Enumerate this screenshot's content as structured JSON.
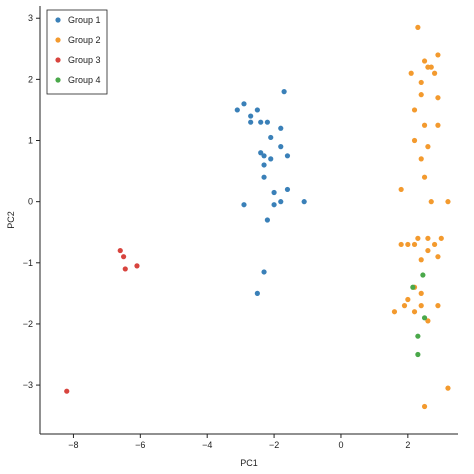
{
  "chart_data": {
    "type": "scatter",
    "title": "",
    "xlabel": "PC1",
    "ylabel": "PC2",
    "xlim": [
      -9.0,
      3.5
    ],
    "ylim": [
      -3.8,
      3.2
    ],
    "x_ticks": [
      -8,
      -6,
      -4,
      -2,
      0,
      2
    ],
    "x_tick_labels": [
      "−8",
      "−6",
      "−4",
      "−2",
      "0",
      "2"
    ],
    "y_ticks": [
      -3,
      -2,
      -1,
      0,
      1,
      2,
      3
    ],
    "y_tick_labels": [
      "−3",
      "−2",
      "−1",
      "0",
      "1",
      "2",
      "3"
    ],
    "grid": false,
    "legend_position": "top-left",
    "series": [
      {
        "name": "Group 1",
        "color": "#3a80b8",
        "points": [
          [
            -2.9,
            1.6
          ],
          [
            -3.1,
            1.5
          ],
          [
            -2.7,
            1.4
          ],
          [
            -2.5,
            1.5
          ],
          [
            -2.7,
            1.3
          ],
          [
            -2.4,
            1.3
          ],
          [
            -2.2,
            1.3
          ],
          [
            -1.7,
            1.8
          ],
          [
            -1.8,
            1.2
          ],
          [
            -2.1,
            1.05
          ],
          [
            -1.8,
            0.9
          ],
          [
            -2.4,
            0.8
          ],
          [
            -2.3,
            0.75
          ],
          [
            -2.1,
            0.7
          ],
          [
            -1.6,
            0.75
          ],
          [
            -2.3,
            0.6
          ],
          [
            -2.3,
            0.4
          ],
          [
            -1.6,
            0.2
          ],
          [
            -2.0,
            0.15
          ],
          [
            -1.8,
            0.0
          ],
          [
            -2.0,
            -0.05
          ],
          [
            -2.9,
            -0.05
          ],
          [
            -1.1,
            0.0
          ],
          [
            -2.2,
            -0.3
          ],
          [
            -2.3,
            -1.15
          ],
          [
            -2.5,
            -1.5
          ]
        ]
      },
      {
        "name": "Group 2",
        "color": "#f39a2e",
        "points": [
          [
            2.3,
            2.85
          ],
          [
            2.5,
            2.3
          ],
          [
            2.9,
            2.4
          ],
          [
            2.6,
            2.2
          ],
          [
            2.7,
            2.2
          ],
          [
            2.1,
            2.1
          ],
          [
            2.8,
            2.1
          ],
          [
            2.4,
            1.95
          ],
          [
            2.4,
            1.75
          ],
          [
            2.9,
            1.7
          ],
          [
            2.2,
            1.5
          ],
          [
            2.5,
            1.25
          ],
          [
            2.9,
            1.25
          ],
          [
            2.2,
            1.0
          ],
          [
            2.6,
            0.9
          ],
          [
            2.4,
            0.7
          ],
          [
            2.5,
            0.4
          ],
          [
            1.8,
            0.2
          ],
          [
            2.7,
            0.0
          ],
          [
            3.2,
            0.0
          ],
          [
            2.3,
            -0.6
          ],
          [
            2.6,
            -0.6
          ],
          [
            3.0,
            -0.6
          ],
          [
            1.8,
            -0.7
          ],
          [
            2.0,
            -0.7
          ],
          [
            2.2,
            -0.7
          ],
          [
            2.8,
            -0.7
          ],
          [
            2.6,
            -0.8
          ],
          [
            2.9,
            -0.9
          ],
          [
            2.4,
            -0.95
          ],
          [
            2.2,
            -1.4
          ],
          [
            2.4,
            -1.5
          ],
          [
            2.0,
            -1.6
          ],
          [
            1.9,
            -1.7
          ],
          [
            2.4,
            -1.7
          ],
          [
            2.9,
            -1.7
          ],
          [
            1.6,
            -1.8
          ],
          [
            2.2,
            -1.8
          ],
          [
            2.6,
            -1.95
          ],
          [
            3.2,
            -3.05
          ],
          [
            2.5,
            -3.35
          ]
        ]
      },
      {
        "name": "Group 3",
        "color": "#d8443e",
        "points": [
          [
            -6.6,
            -0.8
          ],
          [
            -6.5,
            -0.9
          ],
          [
            -6.1,
            -1.05
          ],
          [
            -6.45,
            -1.1
          ],
          [
            -8.2,
            -3.1
          ]
        ]
      },
      {
        "name": "Group 4",
        "color": "#4aa84a",
        "points": [
          [
            2.45,
            -1.2
          ],
          [
            2.15,
            -1.4
          ],
          [
            2.5,
            -1.9
          ],
          [
            2.3,
            -2.2
          ],
          [
            2.3,
            -2.5
          ]
        ]
      }
    ]
  }
}
